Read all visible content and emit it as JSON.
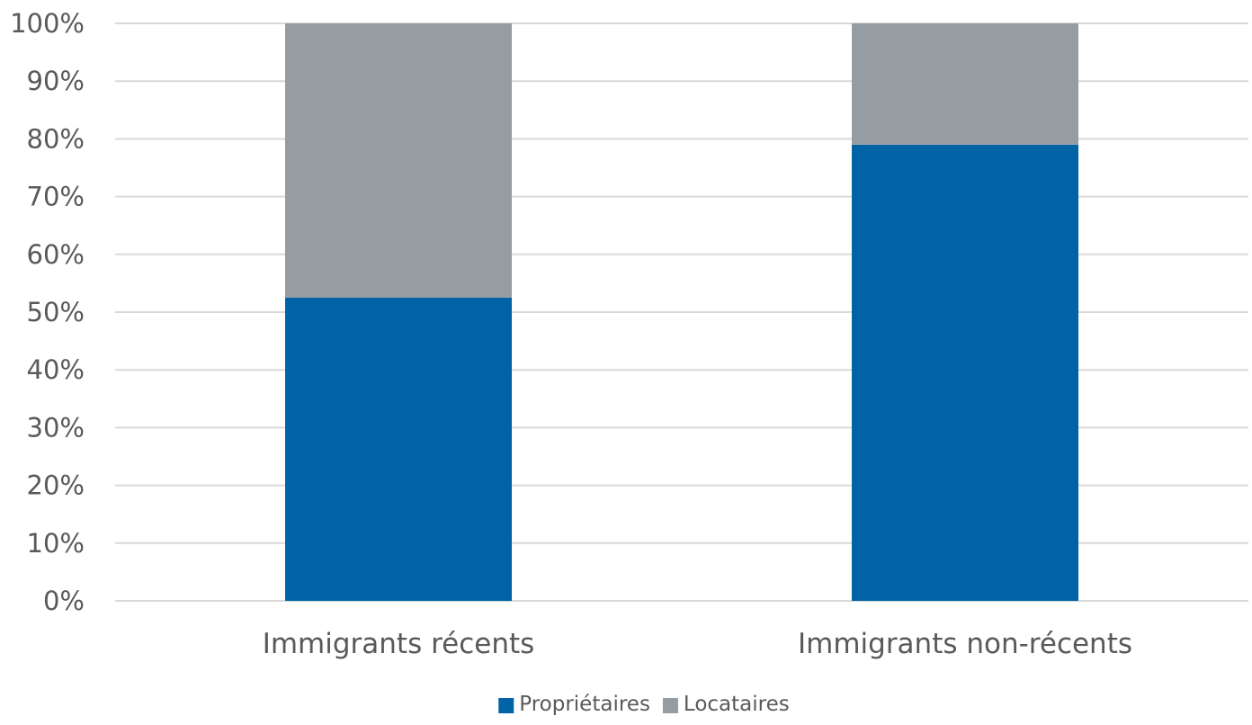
{
  "chart_data": {
    "type": "bar",
    "stacked": true,
    "categories": [
      "Immigrants récents",
      "Immigrants non-récents"
    ],
    "series": [
      {
        "name": "Propriétaires",
        "values": [
          52.5,
          79
        ],
        "color": "#0063A6"
      },
      {
        "name": "Locataires",
        "values": [
          47.5,
          21
        ],
        "color": "#959CA2"
      }
    ],
    "ylim": [
      0,
      100
    ],
    "y_ticks": [
      0,
      10,
      20,
      30,
      40,
      50,
      60,
      70,
      80,
      90,
      100
    ],
    "y_tick_labels": [
      "0%",
      "10%",
      "20%",
      "30%",
      "40%",
      "50%",
      "60%",
      "70%",
      "80%",
      "90%",
      "100%"
    ],
    "grid": true,
    "legend_position": "bottom",
    "title": "",
    "xlabel": "",
    "ylabel": ""
  }
}
